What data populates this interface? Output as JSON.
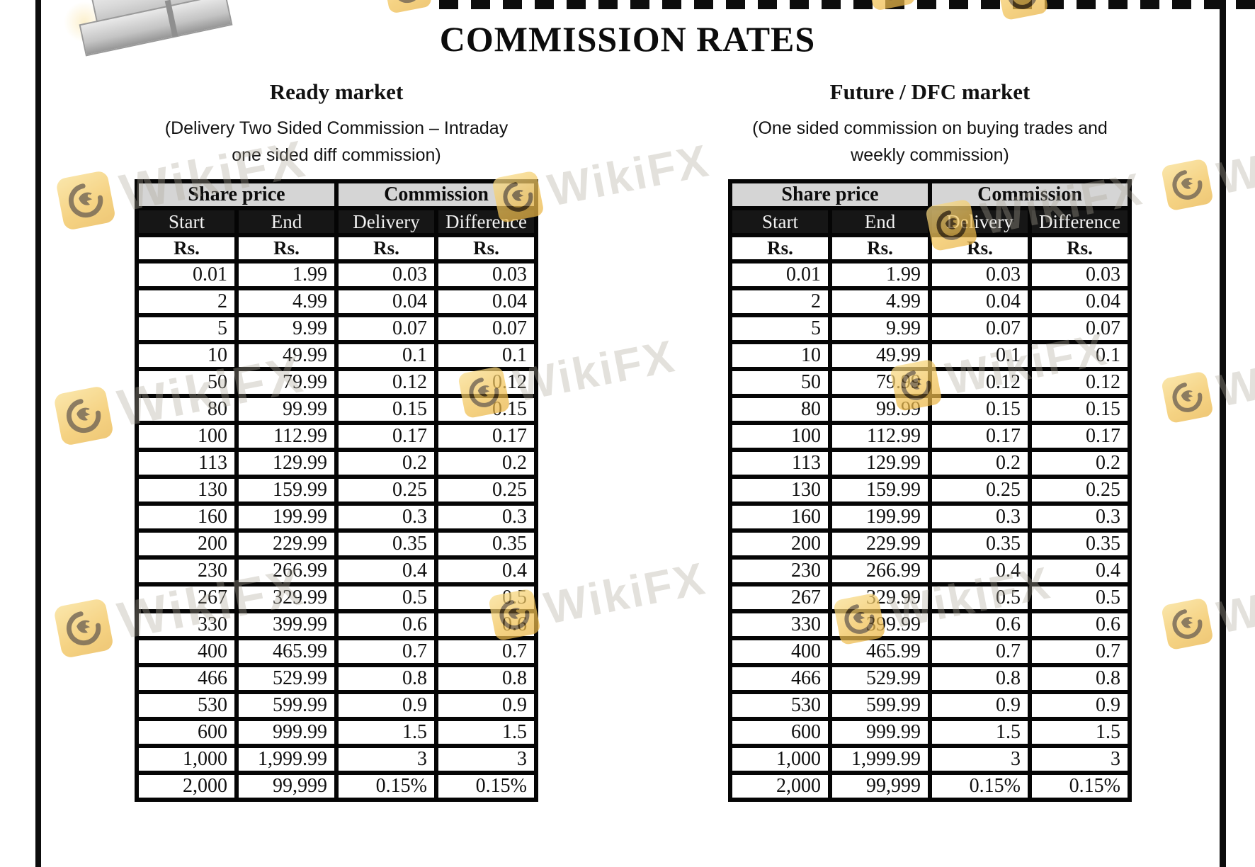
{
  "page": {
    "title": "COMMISSION RATES",
    "watermark": {
      "text": "WikiFX"
    }
  },
  "tables": [
    {
      "market_title": "Ready market",
      "caption": [
        "(Delivery Two Sided Commission – Intraday",
        "one sided diff commission)"
      ],
      "group_headers": [
        "Share price",
        "Commission"
      ],
      "columns": [
        "Start",
        "End",
        "Delivery",
        "Difference"
      ],
      "units": [
        "Rs.",
        "Rs.",
        "Rs.",
        "Rs."
      ],
      "rows": [
        [
          "0.01",
          "1.99",
          "0.03",
          "0.03"
        ],
        [
          "2",
          "4.99",
          "0.04",
          "0.04"
        ],
        [
          "5",
          "9.99",
          "0.07",
          "0.07"
        ],
        [
          "10",
          "49.99",
          "0.1",
          "0.1"
        ],
        [
          "50",
          "79.99",
          "0.12",
          "0.12"
        ],
        [
          "80",
          "99.99",
          "0.15",
          "0.15"
        ],
        [
          "100",
          "112.99",
          "0.17",
          "0.17"
        ],
        [
          "113",
          "129.99",
          "0.2",
          "0.2"
        ],
        [
          "130",
          "159.99",
          "0.25",
          "0.25"
        ],
        [
          "160",
          "199.99",
          "0.3",
          "0.3"
        ],
        [
          "200",
          "229.99",
          "0.35",
          "0.35"
        ],
        [
          "230",
          "266.99",
          "0.4",
          "0.4"
        ],
        [
          "267",
          "329.99",
          "0.5",
          "0.5"
        ],
        [
          "330",
          "399.99",
          "0.6",
          "0.6"
        ],
        [
          "400",
          "465.99",
          "0.7",
          "0.7"
        ],
        [
          "466",
          "529.99",
          "0.8",
          "0.8"
        ],
        [
          "530",
          "599.99",
          "0.9",
          "0.9"
        ],
        [
          "600",
          "999.99",
          "1.5",
          "1.5"
        ],
        [
          "1,000",
          "1,999.99",
          "3",
          "3"
        ],
        [
          "2,000",
          "99,999",
          "0.15%",
          "0.15%"
        ]
      ]
    },
    {
      "market_title": "Future / DFC market",
      "caption": [
        "(One sided commission on buying trades and",
        "weekly commission)"
      ],
      "group_headers": [
        "Share price",
        "Commission"
      ],
      "columns": [
        "Start",
        "End",
        "Delivery",
        "Difference"
      ],
      "units": [
        "Rs.",
        "Rs.",
        "Rs.",
        "Rs."
      ],
      "rows": [
        [
          "0.01",
          "1.99",
          "0.03",
          "0.03"
        ],
        [
          "2",
          "4.99",
          "0.04",
          "0.04"
        ],
        [
          "5",
          "9.99",
          "0.07",
          "0.07"
        ],
        [
          "10",
          "49.99",
          "0.1",
          "0.1"
        ],
        [
          "50",
          "79.99",
          "0.12",
          "0.12"
        ],
        [
          "80",
          "99.99",
          "0.15",
          "0.15"
        ],
        [
          "100",
          "112.99",
          "0.17",
          "0.17"
        ],
        [
          "113",
          "129.99",
          "0.2",
          "0.2"
        ],
        [
          "130",
          "159.99",
          "0.25",
          "0.25"
        ],
        [
          "160",
          "199.99",
          "0.3",
          "0.3"
        ],
        [
          "200",
          "229.99",
          "0.35",
          "0.35"
        ],
        [
          "230",
          "266.99",
          "0.4",
          "0.4"
        ],
        [
          "267",
          "329.99",
          "0.5",
          "0.5"
        ],
        [
          "330",
          "399.99",
          "0.6",
          "0.6"
        ],
        [
          "400",
          "465.99",
          "0.7",
          "0.7"
        ],
        [
          "466",
          "529.99",
          "0.8",
          "0.8"
        ],
        [
          "530",
          "599.99",
          "0.9",
          "0.9"
        ],
        [
          "600",
          "999.99",
          "1.5",
          "1.5"
        ],
        [
          "1,000",
          "1,999.99",
          "3",
          "3"
        ],
        [
          "2,000",
          "99,999",
          "0.15%",
          "0.15%"
        ]
      ]
    }
  ]
}
